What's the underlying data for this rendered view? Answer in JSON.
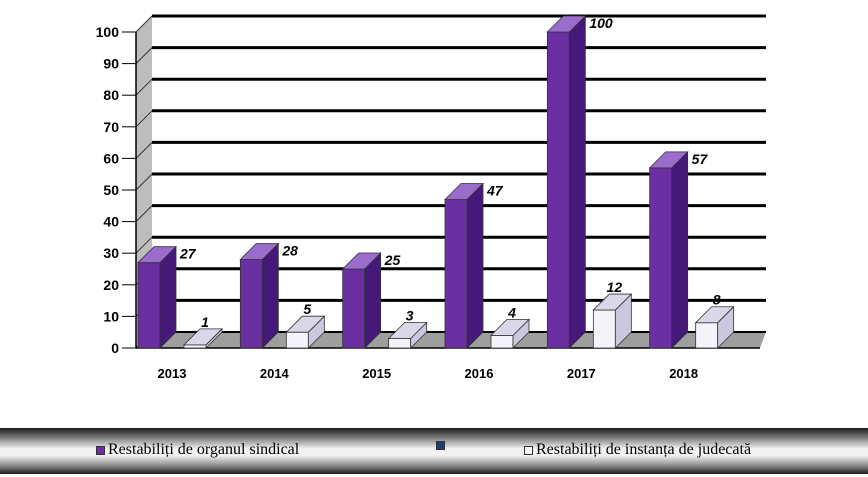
{
  "chart_data": {
    "type": "bar",
    "categories": [
      "2013",
      "2014",
      "2015",
      "2016",
      "2017",
      "2018"
    ],
    "series": [
      {
        "name": "Restabiliți de organul sindical",
        "values": [
          27,
          28,
          25,
          47,
          100,
          57
        ],
        "labels": [
          "27",
          "28",
          "25",
          "47",
          "100",
          "57"
        ],
        "color": "#6a2fa0"
      },
      {
        "name": "",
        "values": [
          0,
          0,
          0,
          0,
          0,
          0
        ],
        "labels": [
          "",
          "",
          "",
          "",
          "",
          ""
        ],
        "color": "#1f3a73"
      },
      {
        "name": "Restabiliți de instanța de judecată",
        "values": [
          1,
          5,
          3,
          4,
          12,
          8
        ],
        "labels": [
          "1",
          "5",
          "3",
          "4",
          "12",
          "8"
        ],
        "color": "#f4f4fa"
      }
    ],
    "yticks": [
      "0",
      "10",
      "20",
      "30",
      "40",
      "50",
      "60",
      "70",
      "80",
      "90",
      "100"
    ],
    "ylim": [
      0,
      100
    ],
    "grid": true,
    "three_d": true,
    "legend_position": "bottom"
  },
  "colors": {
    "series1_front": "#6a2fa0",
    "series1_side": "#45197a",
    "series1_top": "#9a6ccc",
    "series3_front": "#f4f4fa",
    "series3_side": "#c9c8de",
    "series3_top": "#d9d8ea",
    "gridline": "#000000"
  }
}
